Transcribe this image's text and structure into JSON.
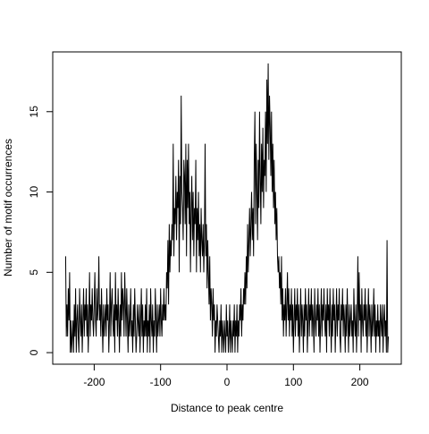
{
  "chart_data": {
    "type": "line",
    "xlabel": "Distance to peak centre",
    "ylabel": "Number of motif occurrences",
    "xlim": [
      -262.44,
      262.44
    ],
    "ylim": [
      -0.72,
      18.72
    ],
    "xticks": [
      -200,
      -100,
      0,
      100,
      200
    ],
    "yticks": [
      0,
      5,
      10,
      15
    ],
    "color": "#000000",
    "x": [
      -243,
      -242,
      -241,
      -240,
      -239,
      -238,
      -237,
      -236,
      -235,
      -234,
      -233,
      -232,
      -231,
      -230,
      -229,
      -228,
      -227,
      -226,
      -225,
      -224,
      -223,
      -222,
      -221,
      -220,
      -219,
      -218,
      -217,
      -216,
      -215,
      -214,
      -213,
      -212,
      -211,
      -210,
      -209,
      -208,
      -207,
      -206,
      -205,
      -204,
      -203,
      -202,
      -201,
      -200,
      -199,
      -198,
      -197,
      -196,
      -195,
      -194,
      -193,
      -192,
      -191,
      -190,
      -189,
      -188,
      -187,
      -186,
      -185,
      -184,
      -183,
      -182,
      -181,
      -180,
      -179,
      -178,
      -177,
      -176,
      -175,
      -174,
      -173,
      -172,
      -171,
      -170,
      -169,
      -168,
      -167,
      -166,
      -165,
      -164,
      -163,
      -162,
      -161,
      -160,
      -159,
      -158,
      -157,
      -156,
      -155,
      -154,
      -153,
      -152,
      -151,
      -150,
      -149,
      -148,
      -147,
      -146,
      -145,
      -144,
      -143,
      -142,
      -141,
      -140,
      -139,
      -138,
      -137,
      -136,
      -135,
      -134,
      -133,
      -132,
      -131,
      -130,
      -129,
      -128,
      -127,
      -126,
      -125,
      -124,
      -123,
      -122,
      -121,
      -120,
      -119,
      -118,
      -117,
      -116,
      -115,
      -114,
      -113,
      -112,
      -111,
      -110,
      -109,
      -108,
      -107,
      -106,
      -105,
      -104,
      -103,
      -102,
      -101,
      -100,
      -99,
      -98,
      -97,
      -96,
      -95,
      -94,
      -93,
      -92,
      -91,
      -90,
      -89,
      -88,
      -87,
      -86,
      -85,
      -84,
      -83,
      -82,
      -81,
      -80,
      -79,
      -78,
      -77,
      -76,
      -75,
      -74,
      -73,
      -72,
      -71,
      -70,
      -69,
      -68,
      -67,
      -66,
      -65,
      -64,
      -63,
      -62,
      -61,
      -60,
      -59,
      -58,
      -57,
      -56,
      -55,
      -54,
      -53,
      -52,
      -51,
      -50,
      -49,
      -48,
      -47,
      -46,
      -45,
      -44,
      -43,
      -42,
      -41,
      -40,
      -39,
      -38,
      -37,
      -36,
      -35,
      -34,
      -33,
      -32,
      -31,
      -30,
      -29,
      -28,
      -27,
      -26,
      -25,
      -24,
      -23,
      -22,
      -21,
      -20,
      -19,
      -18,
      -17,
      -16,
      -15,
      -14,
      -13,
      -12,
      -11,
      -10,
      -9,
      -8,
      -7,
      -6,
      -5,
      -4,
      -3,
      -2,
      -1,
      0,
      1,
      2,
      3,
      4,
      5,
      6,
      7,
      8,
      9,
      10,
      11,
      12,
      13,
      14,
      15,
      16,
      17,
      18,
      19,
      20,
      21,
      22,
      23,
      24,
      25,
      26,
      27,
      28,
      29,
      30,
      31,
      32,
      33,
      34,
      35,
      36,
      37,
      38,
      39,
      40,
      41,
      42,
      43,
      44,
      45,
      46,
      47,
      48,
      49,
      50,
      51,
      52,
      53,
      54,
      55,
      56,
      57,
      58,
      59,
      60,
      61,
      62,
      63,
      64,
      65,
      66,
      67,
      68,
      69,
      70,
      71,
      72,
      73,
      74,
      75,
      76,
      77,
      78,
      79,
      80,
      81,
      82,
      83,
      84,
      85,
      86,
      87,
      88,
      89,
      90,
      91,
      92,
      93,
      94,
      95,
      96,
      97,
      98,
      99,
      100,
      101,
      102,
      103,
      104,
      105,
      106,
      107,
      108,
      109,
      110,
      111,
      112,
      113,
      114,
      115,
      116,
      117,
      118,
      119,
      120,
      121,
      122,
      123,
      124,
      125,
      126,
      127,
      128,
      129,
      130,
      131,
      132,
      133,
      134,
      135,
      136,
      137,
      138,
      139,
      140,
      141,
      142,
      143,
      144,
      145,
      146,
      147,
      148,
      149,
      150,
      151,
      152,
      153,
      154,
      155,
      156,
      157,
      158,
      159,
      160,
      161,
      162,
      163,
      164,
      165,
      166,
      167,
      168,
      169,
      170,
      171,
      172,
      173,
      174,
      175,
      176,
      177,
      178,
      179,
      180,
      181,
      182,
      183,
      184,
      185,
      186,
      187,
      188,
      189,
      190,
      191,
      192,
      193,
      194,
      195,
      196,
      197,
      198,
      199,
      200,
      201,
      202,
      203,
      204,
      205,
      206,
      207,
      208,
      209,
      210,
      211,
      212,
      213,
      214,
      215,
      216,
      217,
      218,
      219,
      220,
      221,
      222,
      223,
      224,
      225,
      226,
      227,
      228,
      229,
      230,
      231,
      232,
      233,
      234,
      235,
      236,
      237,
      238,
      239,
      240,
      241,
      242,
      243
    ],
    "values": [
      6,
      1,
      3,
      1,
      4,
      2,
      5,
      0,
      2,
      0,
      1,
      2,
      0,
      3,
      1,
      4,
      0,
      2,
      3,
      1,
      0,
      4,
      2,
      1,
      3,
      0,
      2,
      4,
      1,
      3,
      2,
      4,
      1,
      3,
      0,
      2,
      5,
      1,
      3,
      2,
      4,
      2,
      1,
      3,
      5,
      2,
      1,
      4,
      2,
      3,
      6,
      2,
      3,
      1,
      4,
      2,
      0,
      3,
      1,
      2,
      3,
      1,
      4,
      2,
      3,
      0,
      2,
      5,
      1,
      3,
      4,
      2,
      1,
      3,
      0,
      5,
      2,
      3,
      1,
      4,
      2,
      0,
      3,
      1,
      5,
      2,
      4,
      3,
      1,
      5,
      3,
      1,
      4,
      2,
      0,
      3,
      1,
      2,
      4,
      1,
      2,
      0,
      3,
      1,
      4,
      2,
      0,
      1,
      3,
      2,
      1,
      3,
      0,
      2,
      4,
      1,
      3,
      0,
      2,
      1,
      3,
      1,
      4,
      0,
      2,
      1,
      3,
      0,
      4,
      2,
      1,
      3,
      0,
      2,
      1,
      4,
      2,
      0,
      3,
      1,
      2,
      3,
      1,
      4,
      2,
      1,
      3,
      2,
      4,
      2,
      3,
      2,
      5,
      4,
      7,
      3,
      8,
      5,
      7,
      6,
      8,
      7,
      13,
      6,
      9,
      8,
      11,
      7,
      10,
      9,
      12,
      5,
      11,
      8,
      16,
      10,
      9,
      7,
      12,
      11,
      8,
      13,
      6,
      12,
      9,
      13,
      8,
      10,
      5,
      9,
      11,
      7,
      10,
      6,
      9,
      8,
      12,
      5,
      9,
      7,
      10,
      6,
      8,
      5,
      9,
      7,
      6,
      8,
      5,
      7,
      13,
      6,
      8,
      4,
      7,
      5,
      3,
      6,
      2,
      4,
      3,
      1,
      4,
      2,
      3,
      0,
      2,
      1,
      3,
      2,
      1,
      0,
      2,
      1,
      3,
      0,
      2,
      1,
      0,
      2,
      1,
      0,
      3,
      1,
      2,
      0,
      1,
      3,
      0,
      2,
      1,
      0,
      2,
      1,
      3,
      0,
      2,
      1,
      3,
      0,
      2,
      1,
      3,
      2,
      4,
      1,
      3,
      2,
      4,
      3,
      5,
      3,
      6,
      4,
      8,
      5,
      7,
      9,
      6,
      8,
      10,
      7,
      9,
      6,
      12,
      15,
      8,
      13,
      10,
      7,
      12,
      9,
      15,
      11,
      8,
      13,
      10,
      14,
      9,
      12,
      11,
      15,
      10,
      17,
      13,
      18,
      12,
      16,
      14,
      11,
      15,
      10,
      13,
      9,
      12,
      8,
      10,
      7,
      9,
      6,
      5,
      6,
      4,
      5,
      3,
      6,
      2,
      4,
      1,
      3,
      2,
      4,
      1,
      3,
      5,
      2,
      4,
      1,
      3,
      2,
      4,
      1,
      3,
      0,
      2,
      4,
      1,
      3,
      2,
      4,
      1,
      3,
      0,
      2,
      4,
      1,
      3,
      2,
      0,
      3,
      1,
      4,
      2,
      3,
      0,
      2,
      4,
      1,
      3,
      2,
      4,
      1,
      3,
      2,
      0,
      4,
      2,
      1,
      3,
      2,
      4,
      1,
      3,
      0,
      2,
      4,
      1,
      3,
      2,
      4,
      2,
      1,
      3,
      0,
      4,
      2,
      3,
      1,
      4,
      2,
      0,
      3,
      1,
      4,
      2,
      3,
      0,
      2,
      4,
      1,
      3,
      2,
      4,
      1,
      0,
      3,
      2,
      4,
      1,
      3,
      2,
      0,
      3,
      1,
      4,
      2,
      0,
      3,
      1,
      2,
      3,
      1,
      2,
      0,
      4,
      2,
      1,
      3,
      0,
      2,
      6,
      1,
      5,
      2,
      3,
      0,
      4,
      2,
      1,
      3,
      2,
      4,
      1,
      3,
      0,
      2,
      4,
      1,
      3,
      2,
      0,
      3,
      1,
      2,
      4,
      1,
      3,
      0,
      2,
      1,
      3,
      1,
      2,
      0,
      3,
      2,
      1,
      3,
      0,
      2,
      3,
      1,
      2,
      0,
      7,
      0,
      1
    ]
  }
}
